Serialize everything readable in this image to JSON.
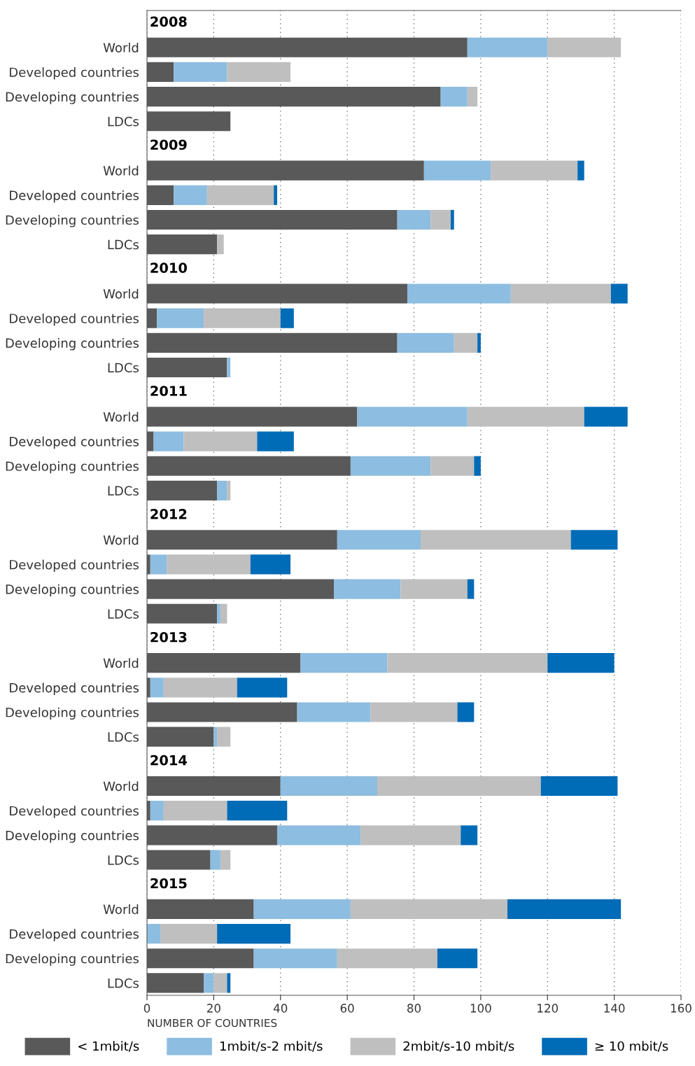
{
  "chart_data": {
    "type": "bar",
    "orientation": "horizontal",
    "stacked": true,
    "categories": [
      "World",
      "Developed countries",
      "Developing countries",
      "LDCs",
      "World",
      "Developed countries",
      "Developing countries",
      "LDCs",
      "World",
      "Developed countries",
      "Developing countries",
      "LDCs",
      "World",
      "Developed countries",
      "Developing countries",
      "LDCs",
      "World",
      "Developed countries",
      "Developing countries",
      "LDCs",
      "World",
      "Developed countries",
      "Developing countries",
      "LDCs",
      "World",
      "Developed countries",
      "Developing countries",
      "LDCs",
      "World",
      "Developed countries",
      "Developing countries",
      "LDCs"
    ],
    "annotations": [
      "2008",
      "2009",
      "2010",
      "2011",
      "2012",
      "2013",
      "2014",
      "2015"
    ],
    "xlim": [
      0,
      160
    ],
    "xticks": [
      0,
      20,
      40,
      60,
      80,
      100,
      120,
      140,
      160
    ],
    "grid": "x",
    "xlabel": "NUMBER OF COUNTRIES",
    "legend": "bottom",
    "series": [
      {
        "name": "< 1mbit/s",
        "color": "#595959",
        "values": [
          96,
          8,
          88,
          25,
          83,
          8,
          75,
          21,
          78,
          3,
          75,
          24,
          63,
          2,
          61,
          21,
          57,
          1,
          56,
          21,
          46,
          1,
          45,
          20,
          40,
          1,
          39,
          19,
          32,
          0,
          32,
          17
        ]
      },
      {
        "name": "1mbit/s-2 mbit/s",
        "color": "#8dbde0",
        "values": [
          24,
          16,
          8,
          0,
          20,
          10,
          10,
          0,
          31,
          14,
          17,
          1,
          33,
          9,
          24,
          3,
          25,
          5,
          20,
          1,
          26,
          4,
          22,
          1,
          29,
          4,
          25,
          3,
          29,
          4,
          25,
          3
        ]
      },
      {
        "name": "2mbit/s-10 mbit/s",
        "color": "#bfbfbf",
        "values": [
          22,
          19,
          3,
          0,
          26,
          20,
          6,
          2,
          30,
          23,
          7,
          0,
          35,
          22,
          13,
          1,
          45,
          25,
          20,
          2,
          48,
          22,
          26,
          4,
          49,
          19,
          30,
          3,
          47,
          17,
          30,
          4
        ]
      },
      {
        "name": "≥ 10 mbit/s",
        "color": "#006bb6",
        "values": [
          0,
          0,
          0,
          0,
          2,
          1,
          1,
          0,
          5,
          4,
          1,
          0,
          13,
          11,
          2,
          0,
          14,
          12,
          2,
          0,
          20,
          15,
          5,
          0,
          23,
          18,
          5,
          0,
          34,
          22,
          12,
          1
        ]
      }
    ]
  }
}
